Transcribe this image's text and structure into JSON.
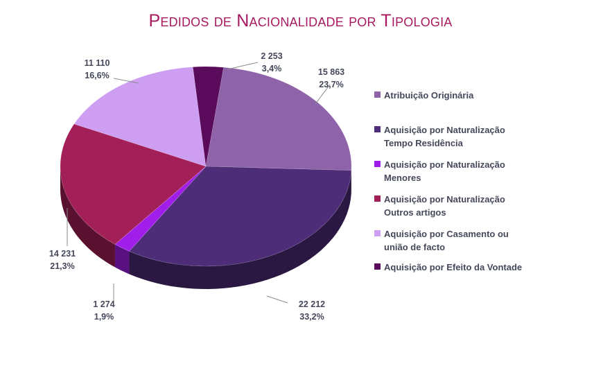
{
  "title": "Pedidos de Nacionalidade por Tipologia",
  "chart_data": {
    "type": "pie",
    "title": "Pedidos de Nacionalidade por Tipologia",
    "legend_position": "right",
    "slices": [
      {
        "name": "Atribuição Originária",
        "legend": "Atribuição Originária",
        "value": 15863,
        "value_label": "15 863",
        "percent_label": "23,7%",
        "color": "#8e63a9"
      },
      {
        "name": "Aquisição por Naturalização Tempo Residência",
        "legend": "Aquisição por Naturalização\nTempo Residência",
        "value": 22212,
        "value_label": "22 212",
        "percent_label": "33,2%",
        "color": "#4d2c78"
      },
      {
        "name": "Aquisição por Naturalização Menores",
        "legend": "Aquisição por Naturalização\nMenores",
        "value": 1274,
        "value_label": "1 274",
        "percent_label": "1,9%",
        "color": "#a11eea"
      },
      {
        "name": "Aquisição por Naturalização Outros artigos",
        "legend": "Aquisição por Naturalização\nOutros artigos",
        "value": 14231,
        "value_label": "14 231",
        "percent_label": "21,3%",
        "color": "#a31f58"
      },
      {
        "name": "Aquisição por Casamento ou união de facto",
        "legend": "Aquisição por Casamento ou\nunião de facto",
        "value": 11110,
        "value_label": "11 110",
        "percent_label": "16,6%",
        "color": "#ce9ef3"
      },
      {
        "name": "Aquisição por Efeito da Vontade",
        "legend": "Aquisição por Efeito da Vontade",
        "value": 2253,
        "value_label": "2 253",
        "percent_label": "3,4%",
        "color": "#5a0b5c"
      }
    ]
  }
}
